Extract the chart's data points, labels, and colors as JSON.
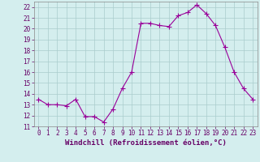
{
  "x": [
    0,
    1,
    2,
    3,
    4,
    5,
    6,
    7,
    8,
    9,
    10,
    11,
    12,
    13,
    14,
    15,
    16,
    17,
    18,
    19,
    20,
    21,
    22,
    23
  ],
  "y": [
    13.5,
    13.0,
    13.0,
    12.9,
    13.5,
    11.9,
    11.9,
    11.4,
    12.6,
    14.5,
    16.0,
    20.5,
    20.5,
    20.3,
    20.2,
    21.2,
    21.5,
    22.2,
    21.4,
    20.3,
    18.3,
    16.0,
    14.5,
    13.5
  ],
  "line_color": "#990099",
  "marker": "+",
  "marker_size": 4,
  "bg_color": "#d4eeee",
  "grid_color": "#aacccc",
  "xlabel": "Windchill (Refroidissement éolien,°C)",
  "ylim": [
    11,
    22.5
  ],
  "xlim": [
    -0.5,
    23.5
  ],
  "yticks": [
    11,
    12,
    13,
    14,
    15,
    16,
    17,
    18,
    19,
    20,
    21,
    22
  ],
  "xticks": [
    0,
    1,
    2,
    3,
    4,
    5,
    6,
    7,
    8,
    9,
    10,
    11,
    12,
    13,
    14,
    15,
    16,
    17,
    18,
    19,
    20,
    21,
    22,
    23
  ],
  "tick_fontsize": 5.5,
  "xlabel_fontsize": 6.5
}
